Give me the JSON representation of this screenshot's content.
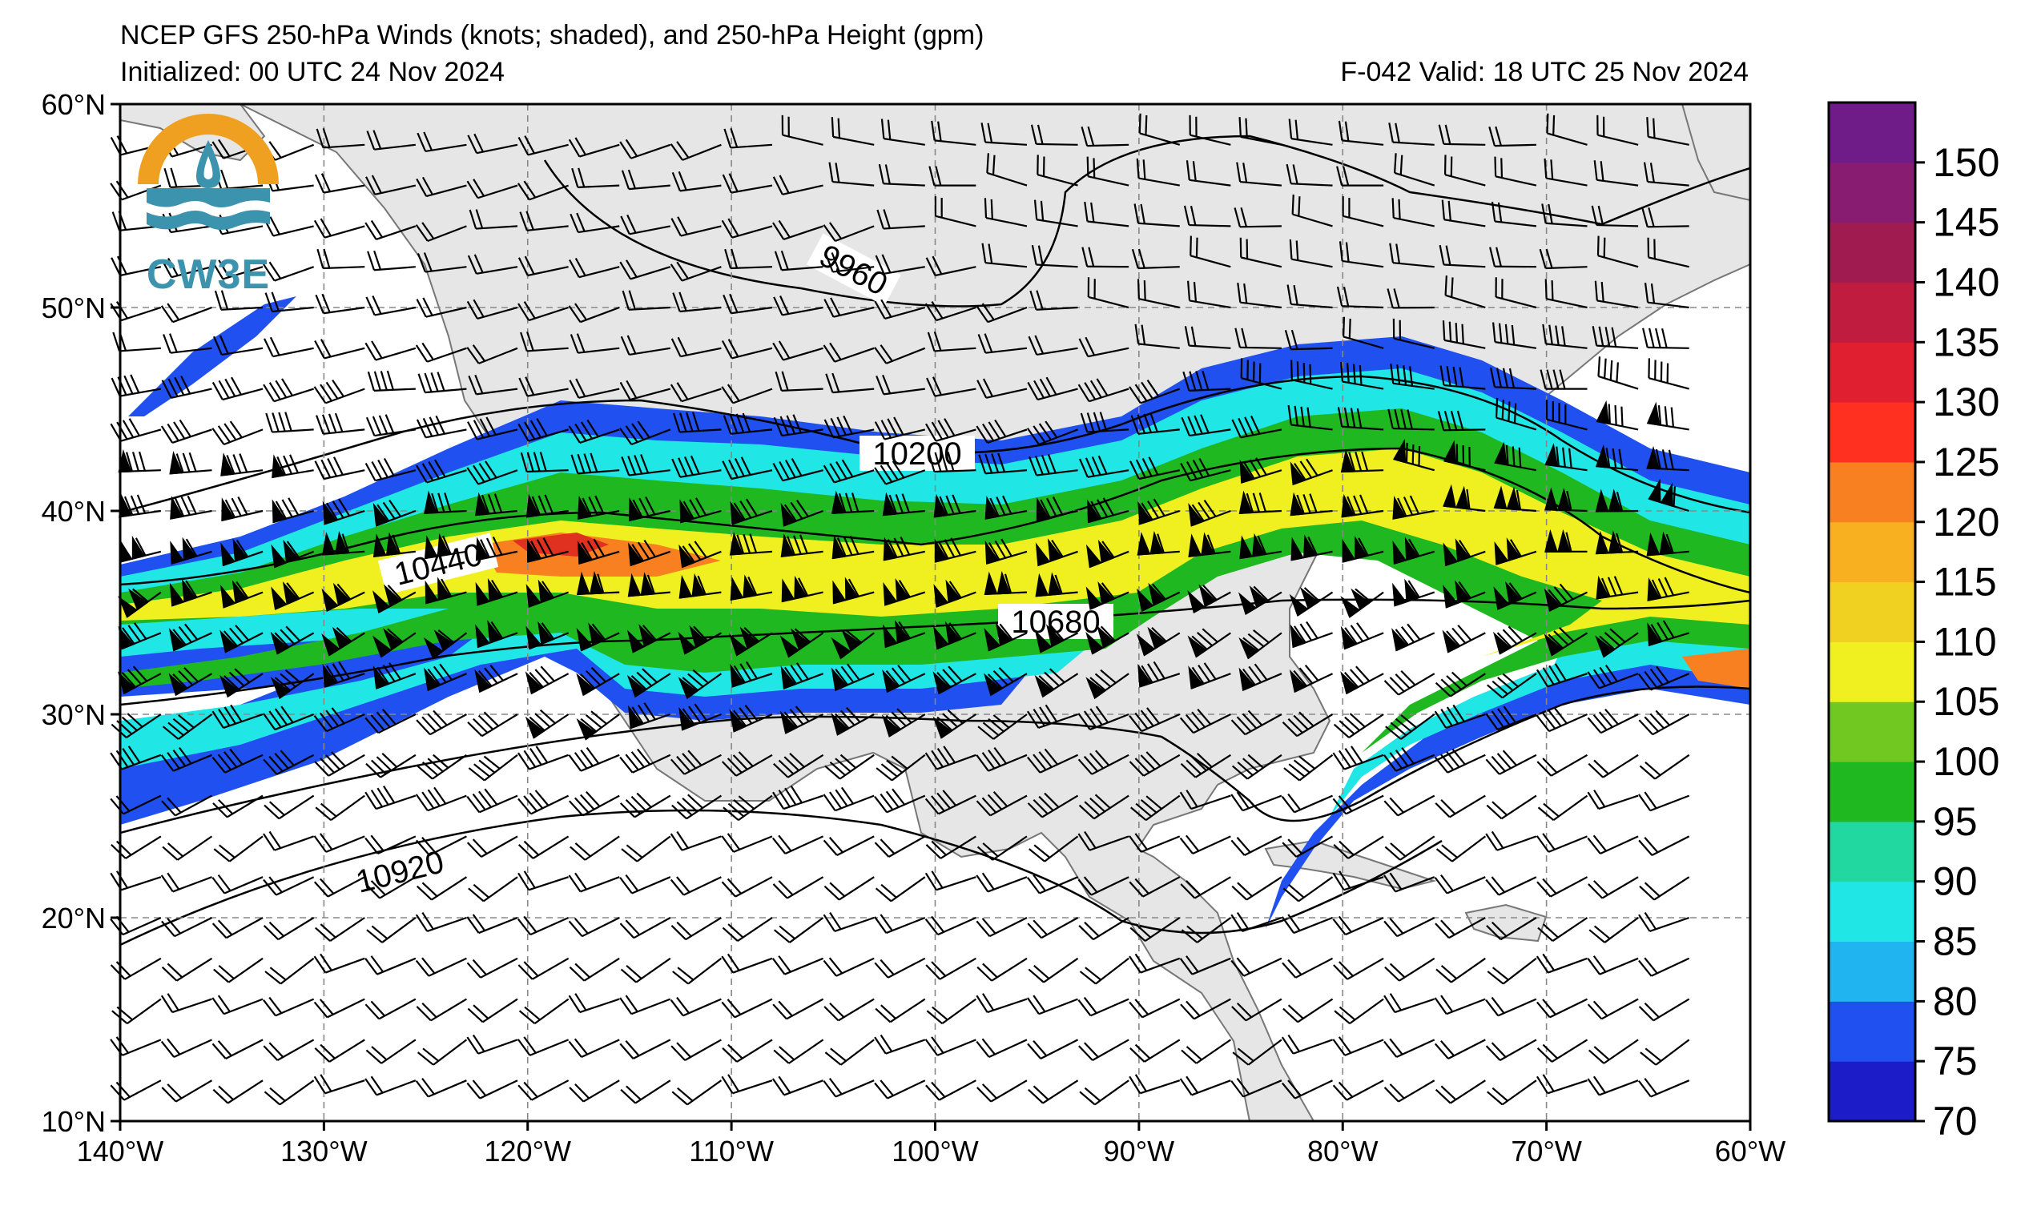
{
  "title": {
    "main": "NCEP GFS 250-hPa Winds (knots; shaded), and 250-hPa Height (gpm)",
    "initialized": "Initialized: 00 UTC 24 Nov 2024",
    "valid": "F-042  Valid: 18 UTC 25 Nov 2024"
  },
  "logo": {
    "text": "CW3E"
  },
  "map": {
    "lon_range": [
      -140,
      -60
    ],
    "lat_range": [
      10,
      60
    ],
    "lon_ticks": [
      "140°W",
      "130°W",
      "120°W",
      "110°W",
      "100°W",
      "90°W",
      "80°W",
      "70°W",
      "60°W"
    ],
    "lat_ticks": [
      "60°N",
      "50°N",
      "40°N",
      "30°N",
      "20°N",
      "10°N"
    ],
    "grid": true
  },
  "contours": [
    {
      "label": "9960"
    },
    {
      "label": "10200"
    },
    {
      "label": "10440"
    },
    {
      "label": "10680"
    },
    {
      "label": "10920"
    }
  ],
  "colorbar": {
    "levels": [
      70,
      75,
      80,
      85,
      90,
      95,
      100,
      105,
      110,
      115,
      120,
      125,
      130,
      135,
      140,
      145,
      150,
      155
    ],
    "tick_labels": [
      "70",
      "75",
      "80",
      "85",
      "90",
      "95",
      "100",
      "105",
      "110",
      "115",
      "120",
      "125",
      "130",
      "135",
      "140",
      "145",
      "150"
    ],
    "colors": [
      "#1c1cc8",
      "#2050f0",
      "#20b4f0",
      "#20e6e6",
      "#20d8a0",
      "#20b820",
      "#70c820",
      "#f0f020",
      "#f0d020",
      "#f8b020",
      "#f88020",
      "#ff3020",
      "#e02030",
      "#c01c40",
      "#a01c50",
      "#881c70",
      "#701c88"
    ]
  },
  "jet_colors": {
    "outer": "#1c1cc8",
    "b75": "#2050f0",
    "b80": "#20b4f0",
    "b85": "#20e6e6",
    "b90": "#20d8a0",
    "b95": "#20b820",
    "b100": "#70c820",
    "b105": "#f0f020",
    "b110": "#f8b020",
    "b120": "#f88020",
    "b130": "#e03020"
  },
  "land_color": "#e6e6e6",
  "logo_colors": {
    "ring": "#f0a020",
    "wave": "#3b93ad"
  }
}
